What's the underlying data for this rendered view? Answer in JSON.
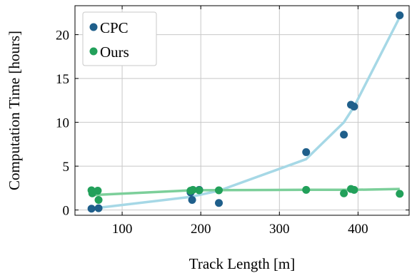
{
  "chart_data": {
    "type": "scatter",
    "xlabel": "Track Length [m]",
    "ylabel": "Computation Time [hours]",
    "xlim": [
      40,
      465
    ],
    "ylim": [
      -0.6,
      23.3
    ],
    "xticks": [
      100,
      200,
      300,
      400
    ],
    "yticks": [
      0,
      5,
      10,
      15,
      20
    ],
    "grid": true,
    "legend_position": "top-left",
    "series": [
      {
        "name": "CPC",
        "color": "#1f5f8b",
        "fit_color": "#a6d8e6",
        "points": [
          {
            "x": 61,
            "y": 0.15
          },
          {
            "x": 70,
            "y": 0.2
          },
          {
            "x": 187,
            "y": 2.0
          },
          {
            "x": 189,
            "y": 1.15
          },
          {
            "x": 198,
            "y": 2.3
          },
          {
            "x": 223,
            "y": 0.8
          },
          {
            "x": 334,
            "y": 6.6
          },
          {
            "x": 382,
            "y": 8.6
          },
          {
            "x": 391,
            "y": 12.0
          },
          {
            "x": 395,
            "y": 11.8
          },
          {
            "x": 453,
            "y": 22.2
          }
        ],
        "fit": [
          {
            "x": 61,
            "y": 0.15
          },
          {
            "x": 70,
            "y": 0.25
          },
          {
            "x": 187,
            "y": 1.5
          },
          {
            "x": 223,
            "y": 2.2
          },
          {
            "x": 334,
            "y": 5.8
          },
          {
            "x": 382,
            "y": 10.0
          },
          {
            "x": 395,
            "y": 11.8
          },
          {
            "x": 453,
            "y": 22.0
          }
        ]
      },
      {
        "name": "Ours",
        "color": "#22a05a",
        "fit_color": "#7ccf9a",
        "points": [
          {
            "x": 61,
            "y": 2.25
          },
          {
            "x": 62,
            "y": 1.9
          },
          {
            "x": 69,
            "y": 2.2
          },
          {
            "x": 70,
            "y": 1.15
          },
          {
            "x": 187,
            "y": 2.2
          },
          {
            "x": 190,
            "y": 2.3
          },
          {
            "x": 198,
            "y": 2.25
          },
          {
            "x": 223,
            "y": 2.25
          },
          {
            "x": 334,
            "y": 2.3
          },
          {
            "x": 382,
            "y": 1.9
          },
          {
            "x": 391,
            "y": 2.4
          },
          {
            "x": 395,
            "y": 2.3
          },
          {
            "x": 453,
            "y": 1.85
          }
        ],
        "fit": [
          {
            "x": 61,
            "y": 1.7
          },
          {
            "x": 190,
            "y": 2.25
          },
          {
            "x": 334,
            "y": 2.3
          },
          {
            "x": 395,
            "y": 2.3
          },
          {
            "x": 453,
            "y": 2.4
          }
        ]
      }
    ]
  }
}
